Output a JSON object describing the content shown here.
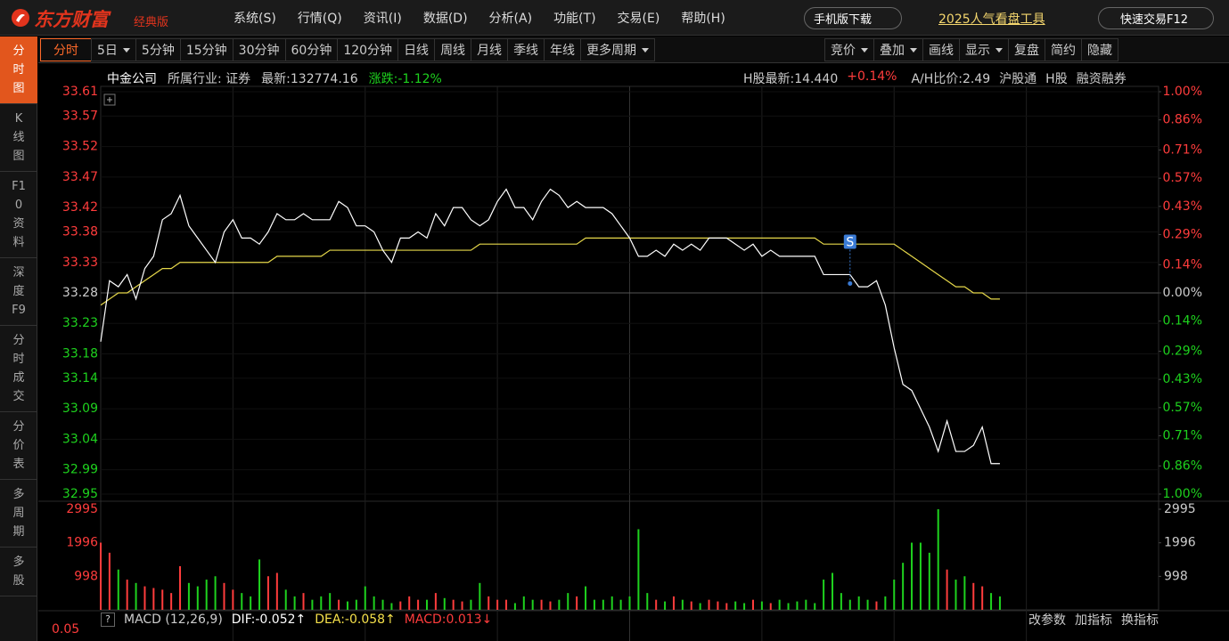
{
  "header": {
    "logo": "东方财富",
    "edition": "经典版",
    "menu": [
      "系统(S)",
      "行情(Q)",
      "资讯(I)",
      "数据(D)",
      "分析(A)",
      "功能(T)",
      "交易(E)",
      "帮助(H)"
    ],
    "mobile": "手机版下载",
    "promo": "2025人气看盘工具",
    "trade": "快速交易F12"
  },
  "sidebar": {
    "items": [
      "分时图",
      "K线图",
      "F10资料",
      "深度F9",
      "分时成交",
      "分价表",
      "多周期",
      "多股"
    ]
  },
  "toolbar": {
    "periods": [
      {
        "label": "分时",
        "dropdown": false
      },
      {
        "label": "5日",
        "dropdown": true
      },
      {
        "label": "5分钟",
        "dropdown": false
      },
      {
        "label": "15分钟",
        "dropdown": false
      },
      {
        "label": "30分钟",
        "dropdown": false
      },
      {
        "label": "60分钟",
        "dropdown": false
      },
      {
        "label": "120分钟",
        "dropdown": false
      },
      {
        "label": "日线",
        "dropdown": false
      },
      {
        "label": "周线",
        "dropdown": false
      },
      {
        "label": "月线",
        "dropdown": false
      },
      {
        "label": "季线",
        "dropdown": false
      },
      {
        "label": "年线",
        "dropdown": false
      },
      {
        "label": "更多周期",
        "dropdown": true
      }
    ],
    "tools": [
      {
        "label": "竞价",
        "dropdown": true
      },
      {
        "label": "叠加",
        "dropdown": true
      },
      {
        "label": "画线",
        "dropdown": false
      },
      {
        "label": "显示",
        "dropdown": true
      },
      {
        "label": "复盘",
        "dropdown": false
      },
      {
        "label": "简约",
        "dropdown": false
      },
      {
        "label": "隐藏",
        "dropdown": false
      }
    ]
  },
  "info_bar": {
    "name": "中金公司",
    "industry": "所属行业: 证券",
    "latest": "最新:132774.16",
    "change": "涨跌:-1.12%",
    "h_latest": "H股最新:14.440",
    "h_change": "+0.14%",
    "ah_ratio": "A/H比价:2.49",
    "links": [
      "沪股通",
      "H股",
      "融资融券"
    ]
  },
  "chart_data": [
    {
      "type": "line",
      "signal": "S",
      "up_color": "#ff3c3c",
      "down_color": "#1ed21e",
      "grid": true,
      "categories": [
        null,
        null,
        null,
        null,
        null,
        null,
        null,
        null,
        null,
        null,
        null,
        null,
        null,
        null,
        null,
        null,
        null,
        null,
        null,
        null,
        null,
        null,
        null,
        null,
        null,
        null,
        null,
        null,
        null,
        null,
        null,
        null,
        null,
        null,
        null,
        null,
        null,
        null,
        null,
        null,
        null,
        null,
        null,
        null,
        null,
        null,
        null,
        null,
        null,
        null,
        null,
        null,
        null,
        null,
        null,
        null,
        null,
        null,
        null,
        null,
        null,
        null,
        null,
        null,
        null,
        null,
        null,
        null,
        null,
        null,
        null,
        null,
        null,
        null,
        null,
        null,
        null,
        null,
        null,
        null,
        null,
        null,
        null,
        null,
        null,
        null,
        null,
        null,
        null,
        null,
        null,
        null,
        null,
        null,
        null,
        null,
        null,
        null,
        null,
        null,
        null,
        null,
        null,
        null,
        null,
        null,
        null,
        null,
        null,
        null,
        null,
        null,
        null,
        null,
        null,
        null,
        null,
        null,
        null,
        null,
        null
      ],
      "series": [
        {
          "color": "#ffffff",
          "values": [
            33.2,
            33.3,
            33.29,
            33.31,
            33.27,
            33.32,
            33.34,
            33.4,
            33.41,
            33.44,
            33.39,
            33.37,
            33.35,
            33.33,
            33.38,
            33.4,
            33.37,
            33.37,
            33.36,
            33.38,
            33.41,
            33.4,
            33.4,
            33.41,
            33.4,
            33.4,
            33.4,
            33.43,
            33.42,
            33.39,
            33.39,
            33.38,
            33.35,
            33.33,
            33.37,
            33.37,
            33.38,
            33.37,
            33.41,
            33.39,
            33.42,
            33.42,
            33.4,
            33.39,
            33.4,
            33.43,
            33.45,
            33.42,
            33.42,
            33.4,
            33.43,
            33.45,
            33.44,
            33.42,
            33.43,
            33.42,
            33.42,
            33.42,
            33.41,
            33.39,
            33.37,
            33.34,
            33.34,
            33.35,
            33.34,
            33.36,
            33.35,
            33.36,
            33.35,
            33.37,
            33.37,
            33.37,
            33.36,
            33.35,
            33.36,
            33.34,
            33.35,
            33.34,
            33.34,
            33.34,
            33.34,
            33.34,
            33.31,
            33.31,
            33.31,
            33.31,
            33.29,
            33.29,
            33.3,
            33.26,
            33.19,
            33.13,
            33.12,
            33.09,
            33.06,
            33.02,
            33.07,
            33.02,
            33.02,
            33.03,
            33.06,
            33.0,
            33.0,
            null,
            null,
            null,
            null,
            null,
            null,
            null,
            null,
            null,
            null,
            null,
            null,
            null,
            null,
            null,
            null,
            null,
            null
          ]
        },
        {
          "color": "#e6d84a",
          "values": [
            33.26,
            33.27,
            33.28,
            33.28,
            33.29,
            33.3,
            33.31,
            33.32,
            33.32,
            33.33,
            33.33,
            33.33,
            33.33,
            33.33,
            33.33,
            33.33,
            33.33,
            33.33,
            33.33,
            33.33,
            33.34,
            33.34,
            33.34,
            33.34,
            33.34,
            33.34,
            33.35,
            33.35,
            33.35,
            33.35,
            33.35,
            33.35,
            33.35,
            33.35,
            33.35,
            33.35,
            33.35,
            33.35,
            33.35,
            33.35,
            33.35,
            33.35,
            33.35,
            33.36,
            33.36,
            33.36,
            33.36,
            33.36,
            33.36,
            33.36,
            33.36,
            33.36,
            33.36,
            33.36,
            33.36,
            33.37,
            33.37,
            33.37,
            33.37,
            33.37,
            33.37,
            33.37,
            33.37,
            33.37,
            33.37,
            33.37,
            33.37,
            33.37,
            33.37,
            33.37,
            33.37,
            33.37,
            33.37,
            33.37,
            33.37,
            33.37,
            33.37,
            33.37,
            33.37,
            33.37,
            33.37,
            33.37,
            33.36,
            33.36,
            33.36,
            33.36,
            33.36,
            33.36,
            33.36,
            33.36,
            33.36,
            33.35,
            33.34,
            33.33,
            33.32,
            33.31,
            33.3,
            33.29,
            33.29,
            33.28,
            33.28,
            33.27,
            33.27,
            null,
            null,
            null,
            null,
            null,
            null,
            null,
            null,
            null,
            null,
            null,
            null,
            null,
            null,
            null,
            null,
            null,
            null
          ]
        }
      ],
      "ylim": [
        32.95,
        33.61
      ],
      "yticks": [
        33.61,
        33.57,
        33.52,
        33.47,
        33.42,
        33.38,
        33.33,
        33.28,
        33.23,
        33.18,
        33.14,
        33.09,
        33.04,
        32.99,
        32.95
      ],
      "y2lim": [
        -1,
        1
      ],
      "y2ticks": [
        {
          "value": 1,
          "label": "1.00%"
        },
        {
          "value": 0.86,
          "label": "0.86%"
        },
        {
          "value": 0.71,
          "label": "0.71%"
        },
        {
          "value": 0.57,
          "label": "0.57%"
        },
        {
          "value": 0.43,
          "label": "0.43%"
        },
        {
          "value": 0.29,
          "label": "0.29%"
        },
        {
          "value": 0.14,
          "label": "0.14%"
        },
        {
          "value": 0,
          "label": "0.00%"
        },
        {
          "value": -0.14,
          "label": "0.14%"
        },
        {
          "value": -0.29,
          "label": "0.29%"
        },
        {
          "value": -0.43,
          "label": "0.43%"
        },
        {
          "value": -0.57,
          "label": "0.57%"
        },
        {
          "value": -0.71,
          "label": "0.71%"
        },
        {
          "value": -0.86,
          "label": "0.86%"
        },
        {
          "value": -1,
          "label": "1.00%"
        }
      ]
    },
    {
      "type": "bar",
      "categories": [
        null,
        null,
        null,
        null,
        null,
        null,
        null,
        null,
        null,
        null,
        null,
        null,
        null,
        null,
        null,
        null,
        null,
        null,
        null,
        null,
        null,
        null,
        null,
        null,
        null,
        null,
        null,
        null,
        null,
        null,
        null,
        null,
        null,
        null,
        null,
        null,
        null,
        null,
        null,
        null,
        null,
        null,
        null,
        null,
        null,
        null,
        null,
        null,
        null,
        null,
        null,
        null,
        null,
        null,
        null,
        null,
        null,
        null,
        null,
        null,
        null,
        null,
        null,
        null,
        null,
        null,
        null,
        null,
        null,
        null,
        null,
        null,
        null,
        null,
        null,
        null,
        null,
        null,
        null,
        null,
        null,
        null,
        null,
        null,
        null,
        null,
        null,
        null,
        null,
        null,
        null,
        null,
        null,
        null,
        null,
        null,
        null,
        null,
        null,
        null,
        null,
        null,
        null,
        null,
        null,
        null,
        null,
        null,
        null,
        null,
        null,
        null,
        null,
        null,
        null,
        null,
        null,
        null,
        null,
        null,
        null
      ],
      "values": [
        2000,
        1700,
        1200,
        900,
        800,
        700,
        650,
        600,
        500,
        1300,
        800,
        700,
        900,
        1000,
        800,
        600,
        500,
        400,
        1500,
        1000,
        1100,
        600,
        400,
        500,
        300,
        400,
        500,
        300,
        250,
        300,
        700,
        400,
        300,
        200,
        250,
        400,
        300,
        300,
        500,
        350,
        300,
        250,
        300,
        800,
        400,
        300,
        300,
        200,
        400,
        300,
        300,
        250,
        300,
        500,
        400,
        700,
        300,
        300,
        400,
        300,
        400,
        2400,
        500,
        300,
        250,
        400,
        300,
        250,
        200,
        300,
        250,
        200,
        250,
        200,
        300,
        250,
        200,
        300,
        200,
        250,
        300,
        200,
        900,
        1100,
        500,
        300,
        400,
        300,
        250,
        400,
        900,
        1400,
        2000,
        2000,
        1700,
        2995,
        1200,
        900,
        1000,
        800,
        700,
        500,
        400,
        null,
        null,
        null,
        null,
        null,
        null,
        null,
        null,
        null,
        null,
        null,
        null,
        null,
        null,
        null,
        null,
        null,
        null
      ],
      "ylim": [
        0,
        2995
      ],
      "yticks": [
        998,
        1996,
        2995
      ]
    }
  ],
  "macd": {
    "name": "MACD (12,26,9)",
    "dif": "DIF:-0.052↑",
    "dea": "DEA:-0.058↑",
    "macd": "MACD:0.013↓",
    "ytick": "0.05",
    "actions": [
      "改参数",
      "加指标",
      "换指标"
    ]
  }
}
